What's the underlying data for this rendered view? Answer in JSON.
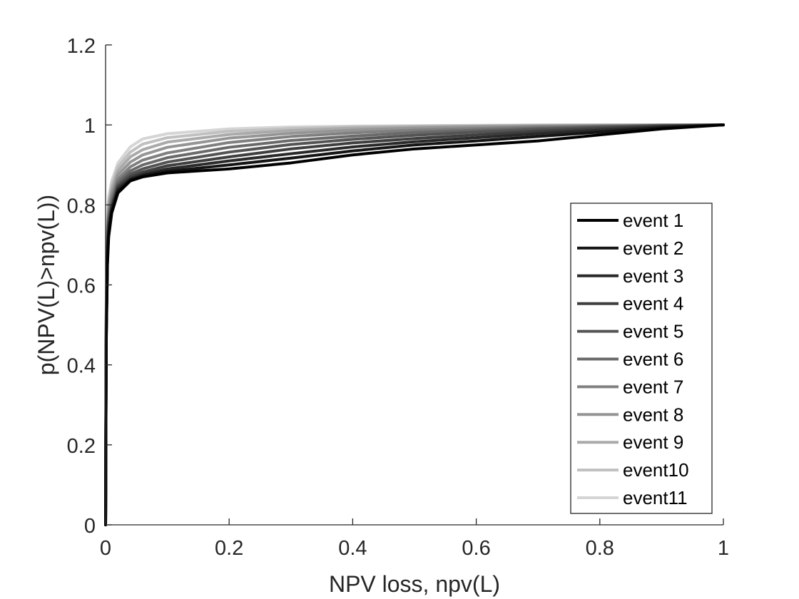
{
  "chart_data": {
    "type": "line",
    "title": "",
    "xlabel": "NPV loss, npv(L)",
    "ylabel": "p(NPV(L)>npv(L))",
    "xlim": [
      0,
      1
    ],
    "ylim": [
      0,
      1.2
    ],
    "x_ticks": [
      "0",
      "0.2",
      "0.4",
      "0.6",
      "0.8",
      "1"
    ],
    "y_ticks": [
      "0",
      "0.2",
      "0.4",
      "0.6",
      "0.8",
      "1",
      "1.2"
    ],
    "grid": false,
    "legend_position": "lower-right",
    "series": [
      {
        "name": "event 1",
        "color": "#000000",
        "x": [
          0,
          0.001,
          0.003,
          0.005,
          0.01,
          0.02,
          0.04,
          0.06,
          0.1,
          0.2,
          0.3,
          0.4,
          0.5,
          0.6,
          0.7,
          0.8,
          0.9,
          1.0
        ],
        "y": [
          0,
          0.45,
          0.65,
          0.72,
          0.78,
          0.83,
          0.86,
          0.87,
          0.88,
          0.89,
          0.905,
          0.925,
          0.94,
          0.95,
          0.96,
          0.975,
          0.99,
          1.0
        ]
      },
      {
        "name": "event 2",
        "color": "#151515",
        "x": [
          0,
          0.001,
          0.003,
          0.005,
          0.01,
          0.02,
          0.04,
          0.06,
          0.1,
          0.2,
          0.3,
          0.4,
          0.5,
          0.6,
          0.7,
          0.8,
          0.9,
          1.0
        ],
        "y": [
          0,
          0.46,
          0.66,
          0.73,
          0.785,
          0.835,
          0.862,
          0.873,
          0.884,
          0.9,
          0.917,
          0.935,
          0.95,
          0.96,
          0.971,
          0.982,
          0.993,
          1.0
        ]
      },
      {
        "name": "event 3",
        "color": "#2a2a2a",
        "x": [
          0,
          0.001,
          0.003,
          0.005,
          0.01,
          0.02,
          0.04,
          0.06,
          0.1,
          0.2,
          0.3,
          0.4,
          0.5,
          0.6,
          0.7,
          0.8,
          0.9,
          1.0
        ],
        "y": [
          0,
          0.47,
          0.67,
          0.74,
          0.79,
          0.84,
          0.865,
          0.876,
          0.89,
          0.91,
          0.928,
          0.945,
          0.958,
          0.968,
          0.978,
          0.987,
          0.995,
          1.0
        ]
      },
      {
        "name": "event 4",
        "color": "#3f3f3f",
        "x": [
          0,
          0.001,
          0.003,
          0.005,
          0.01,
          0.02,
          0.04,
          0.06,
          0.1,
          0.2,
          0.3,
          0.4,
          0.5,
          0.6,
          0.7,
          0.8,
          0.9,
          1.0
        ],
        "y": [
          0,
          0.48,
          0.68,
          0.75,
          0.795,
          0.845,
          0.87,
          0.882,
          0.898,
          0.92,
          0.94,
          0.955,
          0.966,
          0.975,
          0.984,
          0.991,
          0.997,
          1.0
        ]
      },
      {
        "name": "event 5",
        "color": "#545454",
        "x": [
          0,
          0.001,
          0.003,
          0.005,
          0.01,
          0.02,
          0.04,
          0.06,
          0.1,
          0.2,
          0.3,
          0.4,
          0.5,
          0.6,
          0.7,
          0.8,
          0.9,
          1.0
        ],
        "y": [
          0,
          0.49,
          0.69,
          0.76,
          0.8,
          0.85,
          0.877,
          0.89,
          0.907,
          0.932,
          0.951,
          0.964,
          0.974,
          0.982,
          0.989,
          0.994,
          0.998,
          1.0
        ]
      },
      {
        "name": "event 6",
        "color": "#6a6a6a",
        "x": [
          0,
          0.001,
          0.003,
          0.005,
          0.01,
          0.02,
          0.04,
          0.06,
          0.1,
          0.2,
          0.3,
          0.4,
          0.5,
          0.6,
          0.7,
          0.8,
          0.9,
          1.0
        ],
        "y": [
          0,
          0.5,
          0.7,
          0.77,
          0.81,
          0.857,
          0.885,
          0.9,
          0.918,
          0.944,
          0.961,
          0.972,
          0.981,
          0.987,
          0.992,
          0.996,
          0.999,
          1.0
        ]
      },
      {
        "name": "event 7",
        "color": "#808080",
        "x": [
          0,
          0.001,
          0.003,
          0.005,
          0.01,
          0.02,
          0.04,
          0.06,
          0.1,
          0.2,
          0.3,
          0.4,
          0.5,
          0.6,
          0.7,
          0.8,
          0.9,
          1.0
        ],
        "y": [
          0,
          0.51,
          0.71,
          0.78,
          0.82,
          0.865,
          0.895,
          0.912,
          0.93,
          0.956,
          0.971,
          0.98,
          0.987,
          0.991,
          0.995,
          0.997,
          0.999,
          1.0
        ]
      },
      {
        "name": "event 8",
        "color": "#959595",
        "x": [
          0,
          0.001,
          0.003,
          0.005,
          0.01,
          0.02,
          0.04,
          0.06,
          0.1,
          0.2,
          0.3,
          0.4,
          0.5,
          0.6,
          0.7,
          0.8,
          0.9,
          1.0
        ],
        "y": [
          0,
          0.52,
          0.72,
          0.79,
          0.83,
          0.875,
          0.907,
          0.925,
          0.944,
          0.967,
          0.979,
          0.987,
          0.992,
          0.995,
          0.997,
          0.998,
          0.999,
          1.0
        ]
      },
      {
        "name": "event 9",
        "color": "#aaaaaa",
        "x": [
          0,
          0.001,
          0.003,
          0.005,
          0.01,
          0.02,
          0.04,
          0.06,
          0.1,
          0.2,
          0.3,
          0.4,
          0.5,
          0.6,
          0.7,
          0.8,
          0.9,
          1.0
        ],
        "y": [
          0,
          0.53,
          0.73,
          0.8,
          0.84,
          0.885,
          0.92,
          0.938,
          0.957,
          0.976,
          0.986,
          0.992,
          0.995,
          0.997,
          0.998,
          0.999,
          1.0,
          1.0
        ]
      },
      {
        "name": "event10",
        "color": "#c0c0c0",
        "x": [
          0,
          0.001,
          0.003,
          0.005,
          0.01,
          0.02,
          0.04,
          0.06,
          0.1,
          0.2,
          0.3,
          0.4,
          0.5,
          0.6,
          0.7,
          0.8,
          0.9,
          1.0
        ],
        "y": [
          0,
          0.54,
          0.74,
          0.81,
          0.85,
          0.895,
          0.932,
          0.952,
          0.968,
          0.984,
          0.991,
          0.995,
          0.997,
          0.998,
          0.999,
          1.0,
          1.0,
          1.0
        ]
      },
      {
        "name": "event11",
        "color": "#d5d5d5",
        "x": [
          0,
          0.001,
          0.003,
          0.005,
          0.01,
          0.02,
          0.04,
          0.06,
          0.1,
          0.2,
          0.3,
          0.4,
          0.5,
          0.6,
          0.7,
          0.8,
          0.9,
          1.0
        ],
        "y": [
          0,
          0.55,
          0.75,
          0.82,
          0.86,
          0.905,
          0.945,
          0.965,
          0.978,
          0.99,
          0.995,
          0.997,
          0.998,
          0.999,
          1.0,
          1.0,
          1.0,
          1.0
        ]
      }
    ]
  }
}
